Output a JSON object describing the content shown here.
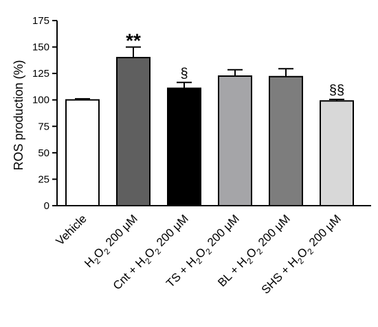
{
  "chart_data": {
    "type": "bar",
    "title": "",
    "xlabel": "",
    "ylabel": "ROS production (%)",
    "ylim": [
      0,
      175
    ],
    "yticks": [
      "0",
      "25",
      "50",
      "75",
      "100",
      "125",
      "150",
      "175"
    ],
    "grid": false,
    "categories": [
      "Vehicle",
      "H2O2 200 μM",
      "Cnt + H2O2 200 μM",
      "TS + H2O2 200 μM",
      "BL + H2O2 200 μM",
      "SHS + H2O2 200 μM"
    ],
    "category_parts": [
      [
        [
          "Vehicle",
          ""
        ]
      ],
      [
        [
          "H",
          ""
        ],
        [
          "2",
          "sub"
        ],
        [
          "O",
          ""
        ],
        [
          "2",
          "sub"
        ],
        [
          " 200 μM",
          ""
        ]
      ],
      [
        [
          "Cnt + H",
          ""
        ],
        [
          "2",
          "sub"
        ],
        [
          "O",
          ""
        ],
        [
          "2",
          "sub"
        ],
        [
          " 200 μM",
          ""
        ]
      ],
      [
        [
          "TS + H",
          ""
        ],
        [
          "2",
          "sub"
        ],
        [
          "O",
          ""
        ],
        [
          "2",
          "sub"
        ],
        [
          " 200 μM",
          ""
        ]
      ],
      [
        [
          "BL + H",
          ""
        ],
        [
          "2",
          "sub"
        ],
        [
          "O",
          ""
        ],
        [
          "2",
          "sub"
        ],
        [
          " 200 μM",
          ""
        ]
      ],
      [
        [
          "SHS + H",
          ""
        ],
        [
          "2",
          "sub"
        ],
        [
          "O",
          ""
        ],
        [
          "2",
          "sub"
        ],
        [
          " 200 μM",
          ""
        ]
      ]
    ],
    "values": [
      100,
      140,
      111,
      122.5,
      122,
      99
    ],
    "errors": [
      1,
      10,
      5.5,
      6,
      7.5,
      1.5
    ],
    "colors": [
      "#ffffff",
      "#5f5f5f",
      "#000000",
      "#a5a5a8",
      "#7d7d7d",
      "#d8d8d8"
    ],
    "annotations": [
      "",
      "**",
      "§",
      "",
      "",
      "§§"
    ]
  }
}
